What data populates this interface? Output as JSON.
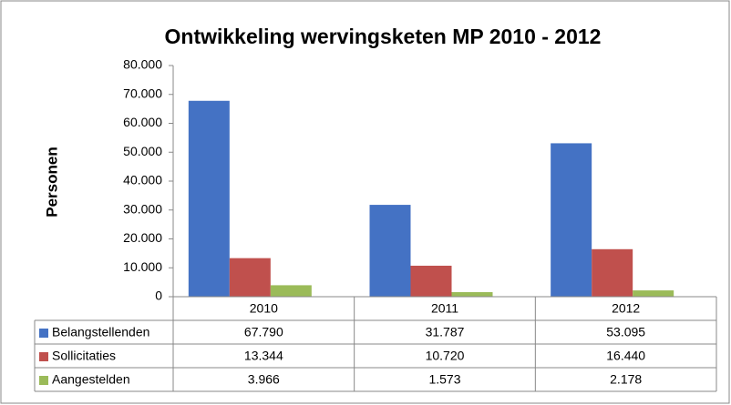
{
  "chart_data": {
    "type": "bar",
    "title": "Ontwikkeling wervingsketen MP 2010 - 2012",
    "y_label": "Personen",
    "categories": [
      "2010",
      "2011",
      "2012"
    ],
    "series": [
      {
        "name": "Belangstellenden",
        "color": "#4472c4",
        "values": [
          67790,
          31787,
          53095
        ],
        "value_labels": [
          "67.790",
          "31.787",
          "53.095"
        ]
      },
      {
        "name": "Sollicitaties",
        "color": "#c0504d",
        "values": [
          13344,
          10720,
          16440
        ],
        "value_labels": [
          "13.344",
          "10.720",
          "16.440"
        ]
      },
      {
        "name": "Aangestelden",
        "color": "#9bbb59",
        "values": [
          3966,
          1573,
          2178
        ],
        "value_labels": [
          "3.966",
          "1.573",
          "2.178"
        ]
      }
    ],
    "ylim": [
      0,
      80000
    ],
    "yticks": [
      0,
      {
        "value": 10000,
        "label": "10.000"
      },
      {
        "value": 20000,
        "label": "20.000"
      },
      {
        "value": 30000,
        "label": "30.000"
      },
      {
        "value": 40000,
        "label": "40.000"
      },
      {
        "value": 50000,
        "label": "50.000"
      },
      {
        "value": 60000,
        "label": "60.000"
      },
      {
        "value": 70000,
        "label": "70.000"
      },
      {
        "value": 80000,
        "label": "80.000"
      }
    ],
    "grid": false
  }
}
